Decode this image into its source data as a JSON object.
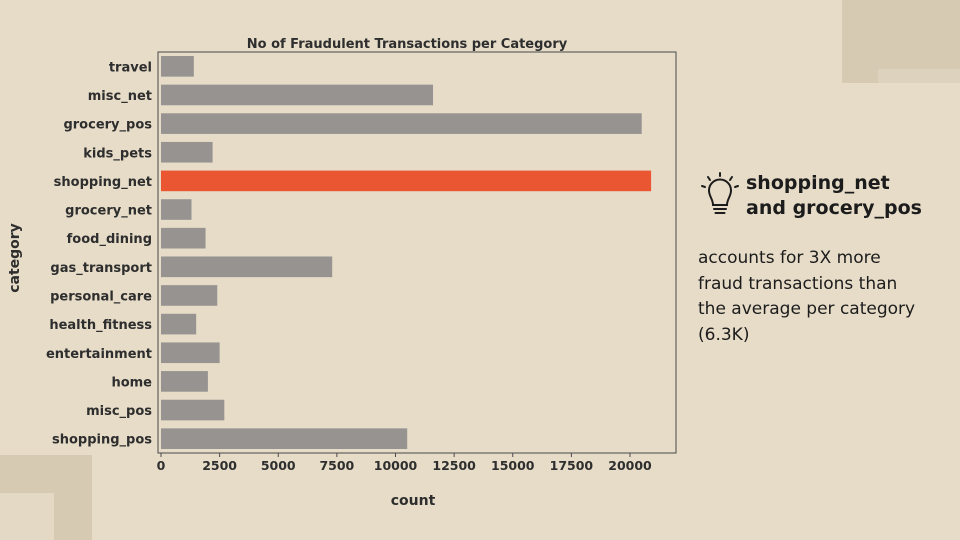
{
  "colors": {
    "background": "#e6dcc8",
    "bar_default": "#969391",
    "bar_highlight": "#ea5532",
    "axis": "#4a4a4a",
    "text": "#2e2e2e"
  },
  "chart_data": {
    "type": "bar",
    "orientation": "horizontal",
    "title": "No of Fraudulent Transactions per Category",
    "xlabel": "count",
    "ylabel": "category",
    "xlim": [
      0,
      22000
    ],
    "xticks": [
      0,
      2500,
      5000,
      7500,
      10000,
      12500,
      15000,
      17500,
      20000
    ],
    "grid": false,
    "categories": [
      "travel",
      "misc_net",
      "grocery_pos",
      "kids_pets",
      "shopping_net",
      "grocery_net",
      "food_dining",
      "gas_transport",
      "personal_care",
      "health_fitness",
      "entertainment",
      "home",
      "misc_pos",
      "shopping_pos"
    ],
    "values": [
      1400,
      11600,
      20500,
      2200,
      20900,
      1300,
      1900,
      7300,
      2400,
      1500,
      2500,
      2000,
      2700,
      10500
    ],
    "highlight": "shopping_net"
  },
  "insight": {
    "icon": "lightbulb-icon",
    "title_lines": [
      "shopping_net",
      "and grocery_pos"
    ],
    "body_lines": [
      "accounts for 3X more",
      "fraud transactions than",
      "the average per category",
      "(6.3K)"
    ]
  }
}
